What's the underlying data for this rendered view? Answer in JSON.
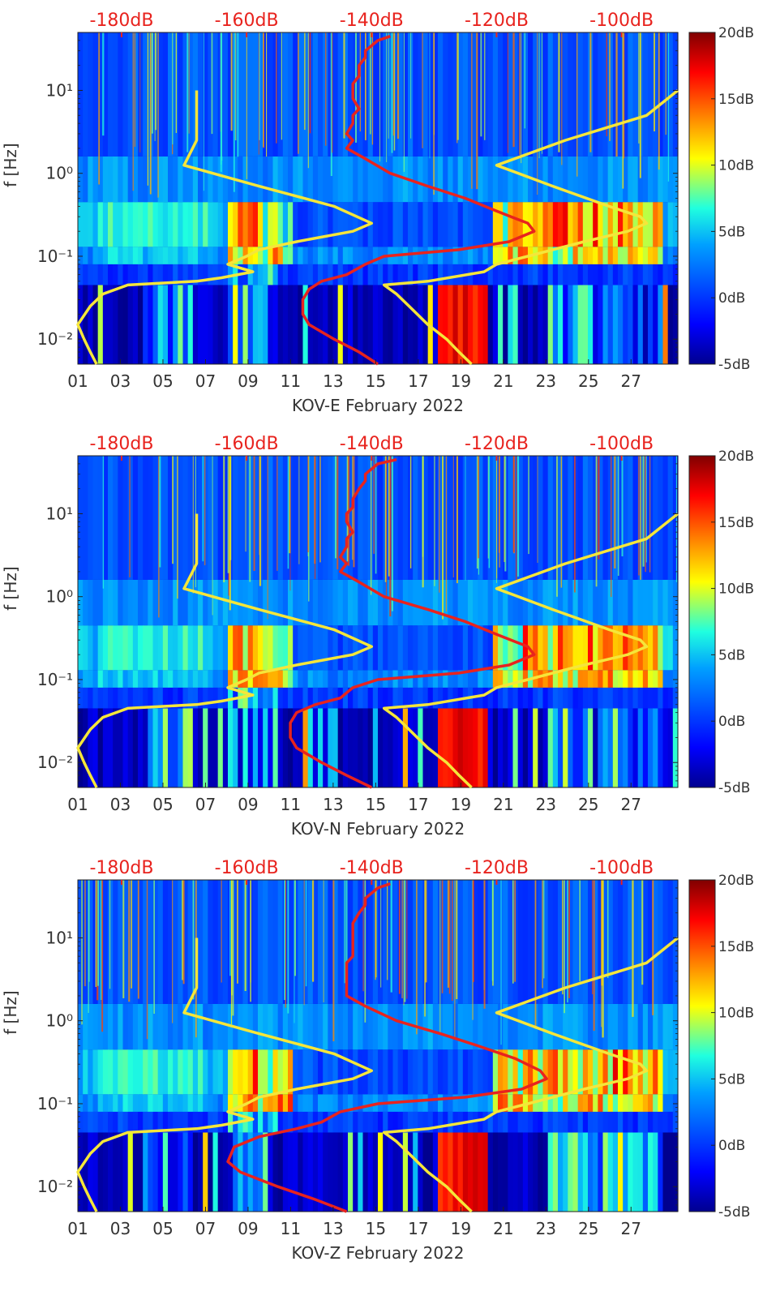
{
  "figure": {
    "title": ""
  },
  "colors": {
    "top_axis_text": "#e8231e",
    "median_line": "#e8231e",
    "noise_model": "#f5e63a",
    "axis_text": "#333333",
    "colormap": [
      "#00008f",
      "#0000ff",
      "#00a0ff",
      "#20ffdf",
      "#ffff00",
      "#ff8000",
      "#ff0000",
      "#800000"
    ]
  },
  "chart_data": [
    {
      "type": "heatmap",
      "station": "KOV-E",
      "xlabel": "KOV-E February 2022",
      "ylabel": "f [Hz]",
      "x_ticks": [
        "01",
        "03",
        "05",
        "07",
        "09",
        "11",
        "13",
        "15",
        "17",
        "19",
        "21",
        "23",
        "25",
        "27"
      ],
      "x_range_days": [
        1,
        29.2
      ],
      "y_ticks": [
        "10¹",
        "10⁰",
        "10⁻¹",
        "10⁻²"
      ],
      "y_tick_values": [
        10,
        1,
        0.1,
        0.01
      ],
      "ylim_hz": [
        0.005,
        50
      ],
      "colorbar": {
        "ticks": [
          "20dB",
          "15dB",
          "10dB",
          "5dB",
          "0dB",
          "-5dB"
        ],
        "range_db": [
          -5,
          20
        ]
      },
      "top_axis": {
        "ticks": [
          "-180dB",
          "-160dB",
          "-140dB",
          "-120dB",
          "-100dB"
        ],
        "range_db": [
          -187,
          -91
        ]
      },
      "median_psd_db": {
        "freq_hz": [
          45,
          40,
          30,
          25,
          20,
          15,
          12,
          10,
          8,
          6,
          5,
          4,
          3,
          2.5,
          2,
          1.5,
          1,
          0.7,
          0.5,
          0.35,
          0.25,
          0.2,
          0.15,
          0.12,
          0.1,
          0.08,
          0.06,
          0.05,
          0.04,
          0.03,
          0.02,
          0.015,
          0.01,
          0.007,
          0.005
        ],
        "db": [
          -137,
          -139,
          -141,
          -141,
          -142,
          -142,
          -143,
          -143,
          -143,
          -142,
          -143,
          -143,
          -144,
          -143,
          -144,
          -141,
          -137,
          -131,
          -125,
          -120,
          -115,
          -114,
          -118,
          -126,
          -138,
          -141,
          -144,
          -148,
          -150,
          -151,
          -151,
          -150,
          -146,
          -142,
          -139
        ]
      },
      "noise_model_low_db": {
        "freq_hz": [
          10,
          5,
          2.5,
          1.25,
          0.7,
          0.4,
          0.25,
          0.2,
          0.15,
          0.12,
          0.1,
          0.08,
          0.065,
          0.055,
          0.05,
          0.045,
          0.035,
          0.025,
          0.015,
          0.01,
          0.007,
          0.005
        ],
        "db": [
          -168,
          -168,
          -168,
          -170,
          -158,
          -146,
          -140,
          -143,
          -152,
          -158,
          -160,
          -163,
          -159,
          -164,
          -168,
          -179,
          -183,
          -185,
          -187,
          -186,
          -185,
          -184
        ]
      },
      "noise_model_high_db": {
        "freq_hz": [
          10,
          5,
          2.5,
          1.25,
          0.7,
          0.4,
          0.3,
          0.25,
          0.2,
          0.15,
          0.12,
          0.1,
          0.08,
          0.065,
          0.05,
          0.045,
          0.035,
          0.025,
          0.015,
          0.01,
          0.007,
          0.005
        ],
        "db": [
          -91,
          -96,
          -109,
          -120,
          -111,
          -102,
          -97,
          -96,
          -99,
          -106,
          -111,
          -115,
          -120,
          -122,
          -131,
          -138,
          -136,
          -134,
          -131,
          -128,
          -126,
          -124
        ]
      }
    },
    {
      "type": "heatmap",
      "station": "KOV-N",
      "xlabel": "KOV-N February 2022",
      "ylabel": "f [Hz]",
      "x_ticks": [
        "01",
        "03",
        "05",
        "07",
        "09",
        "11",
        "13",
        "15",
        "17",
        "19",
        "21",
        "23",
        "25",
        "27"
      ],
      "x_range_days": [
        1,
        29.2
      ],
      "y_ticks": [
        "10¹",
        "10⁰",
        "10⁻¹",
        "10⁻²"
      ],
      "y_tick_values": [
        10,
        1,
        0.1,
        0.01
      ],
      "ylim_hz": [
        0.005,
        50
      ],
      "colorbar": {
        "ticks": [
          "20dB",
          "15dB",
          "10dB",
          "5dB",
          "0dB",
          "-5dB"
        ],
        "range_db": [
          -5,
          20
        ]
      },
      "top_axis": {
        "ticks": [
          "-180dB",
          "-160dB",
          "-140dB",
          "-120dB",
          "-100dB"
        ],
        "range_db": [
          -187,
          -91
        ]
      },
      "median_psd_db": {
        "freq_hz": [
          45,
          40,
          30,
          25,
          20,
          15,
          12,
          10,
          8,
          6,
          5,
          4,
          3,
          2.5,
          2,
          1.5,
          1,
          0.7,
          0.5,
          0.35,
          0.25,
          0.2,
          0.15,
          0.12,
          0.1,
          0.08,
          0.06,
          0.05,
          0.04,
          0.03,
          0.02,
          0.015,
          0.01,
          0.007,
          0.005
        ],
        "db": [
          -136,
          -139,
          -141,
          -141,
          -142,
          -143,
          -143,
          -144,
          -144,
          -143,
          -144,
          -144,
          -145,
          -144,
          -145,
          -142,
          -138,
          -131,
          -125,
          -120,
          -115,
          -114,
          -118,
          -126,
          -139,
          -143,
          -145,
          -149,
          -152,
          -153,
          -153,
          -152,
          -148,
          -144,
          -140
        ]
      },
      "noise_model_low_db": {
        "freq_hz": [
          10,
          5,
          2.5,
          1.25,
          0.7,
          0.4,
          0.25,
          0.2,
          0.15,
          0.12,
          0.1,
          0.08,
          0.065,
          0.055,
          0.05,
          0.045,
          0.035,
          0.025,
          0.015,
          0.01,
          0.007,
          0.005
        ],
        "db": [
          -168,
          -168,
          -168,
          -170,
          -158,
          -146,
          -140,
          -143,
          -152,
          -158,
          -160,
          -163,
          -159,
          -164,
          -168,
          -179,
          -183,
          -185,
          -187,
          -186,
          -185,
          -184
        ]
      },
      "noise_model_high_db": {
        "freq_hz": [
          10,
          5,
          2.5,
          1.25,
          0.7,
          0.4,
          0.3,
          0.25,
          0.2,
          0.15,
          0.12,
          0.1,
          0.08,
          0.065,
          0.05,
          0.045,
          0.035,
          0.025,
          0.015,
          0.01,
          0.007,
          0.005
        ],
        "db": [
          -91,
          -96,
          -109,
          -120,
          -111,
          -102,
          -97,
          -96,
          -99,
          -106,
          -111,
          -115,
          -120,
          -122,
          -131,
          -138,
          -136,
          -134,
          -131,
          -128,
          -126,
          -124
        ]
      }
    },
    {
      "type": "heatmap",
      "station": "KOV-Z",
      "xlabel": "KOV-Z February 2022",
      "ylabel": "f [Hz]",
      "x_ticks": [
        "01",
        "03",
        "05",
        "07",
        "09",
        "11",
        "13",
        "15",
        "17",
        "19",
        "21",
        "23",
        "25",
        "27"
      ],
      "x_range_days": [
        1,
        29.2
      ],
      "y_ticks": [
        "10¹",
        "10⁰",
        "10⁻¹",
        "10⁻²"
      ],
      "y_tick_values": [
        10,
        1,
        0.1,
        0.01
      ],
      "ylim_hz": [
        0.005,
        50
      ],
      "colorbar": {
        "ticks": [
          "20dB",
          "15dB",
          "10dB",
          "5dB",
          "0dB",
          "-5dB"
        ],
        "range_db": [
          -5,
          20
        ]
      },
      "top_axis": {
        "ticks": [
          "-180dB",
          "-160dB",
          "-140dB",
          "-120dB",
          "-100dB"
        ],
        "range_db": [
          -187,
          -91
        ]
      },
      "median_psd_db": {
        "freq_hz": [
          45,
          40,
          30,
          25,
          20,
          15,
          12,
          10,
          8,
          6,
          5,
          4,
          3,
          2.5,
          2,
          1.5,
          1,
          0.7,
          0.5,
          0.35,
          0.25,
          0.2,
          0.15,
          0.12,
          0.1,
          0.08,
          0.06,
          0.05,
          0.04,
          0.03,
          0.02,
          0.015,
          0.01,
          0.007,
          0.005
        ],
        "db": [
          -137,
          -139,
          -141,
          -141,
          -142,
          -143,
          -143,
          -143,
          -143,
          -143,
          -144,
          -144,
          -144,
          -144,
          -144,
          -141,
          -136,
          -129,
          -123,
          -117,
          -113,
          -112,
          -116,
          -125,
          -139,
          -145,
          -148,
          -152,
          -158,
          -162,
          -163,
          -161,
          -155,
          -149,
          -144
        ]
      },
      "noise_model_low_db": {
        "freq_hz": [
          10,
          5,
          2.5,
          1.25,
          0.7,
          0.4,
          0.25,
          0.2,
          0.15,
          0.12,
          0.1,
          0.08,
          0.065,
          0.055,
          0.05,
          0.045,
          0.035,
          0.025,
          0.015,
          0.01,
          0.007,
          0.005
        ],
        "db": [
          -168,
          -168,
          -168,
          -170,
          -158,
          -146,
          -140,
          -143,
          -152,
          -158,
          -160,
          -163,
          -159,
          -164,
          -168,
          -179,
          -183,
          -185,
          -187,
          -186,
          -185,
          -184
        ]
      },
      "noise_model_high_db": {
        "freq_hz": [
          10,
          5,
          2.5,
          1.25,
          0.7,
          0.4,
          0.3,
          0.25,
          0.2,
          0.15,
          0.12,
          0.1,
          0.08,
          0.065,
          0.05,
          0.045,
          0.035,
          0.025,
          0.015,
          0.01,
          0.007,
          0.005
        ],
        "db": [
          -91,
          -96,
          -109,
          -120,
          -111,
          -102,
          -97,
          -96,
          -99,
          -106,
          -111,
          -115,
          -120,
          -122,
          -131,
          -138,
          -136,
          -134,
          -131,
          -128,
          -126,
          -124
        ]
      }
    }
  ]
}
